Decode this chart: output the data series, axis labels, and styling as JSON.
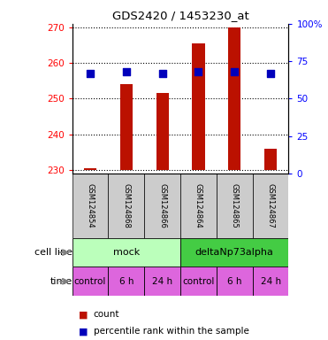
{
  "title": "GDS2420 / 1453230_at",
  "samples": [
    "GSM124854",
    "GSM124868",
    "GSM124866",
    "GSM124864",
    "GSM124865",
    "GSM124867"
  ],
  "counts": [
    230.5,
    254.0,
    251.5,
    265.5,
    270.0,
    236.0
  ],
  "percentile_ranks": [
    67,
    68,
    67,
    68,
    68,
    67
  ],
  "ylim_left": [
    229,
    271
  ],
  "ylim_right": [
    0,
    100
  ],
  "yticks_left": [
    230,
    240,
    250,
    260,
    270
  ],
  "ytick_labels_right": [
    "0",
    "25",
    "50",
    "75",
    "100%"
  ],
  "yticks_right": [
    0,
    25,
    50,
    75,
    100
  ],
  "base_value": 230,
  "cell_lines": [
    {
      "label": "mock",
      "start": 0,
      "end": 3,
      "color": "#bbffbb"
    },
    {
      "label": "deltaNp73alpha",
      "start": 3,
      "end": 6,
      "color": "#44cc44"
    }
  ],
  "time_labels": [
    "control",
    "6 h",
    "24 h",
    "control",
    "6 h",
    "24 h"
  ],
  "time_color": "#dd66dd",
  "bar_color": "#bb1100",
  "dot_color": "#0000bb",
  "sample_bg_color": "#cccccc",
  "bar_width": 0.35,
  "dot_size": 30,
  "legend_items": [
    {
      "color": "#bb1100",
      "label": "count"
    },
    {
      "color": "#0000bb",
      "label": "percentile rank within the sample"
    }
  ]
}
